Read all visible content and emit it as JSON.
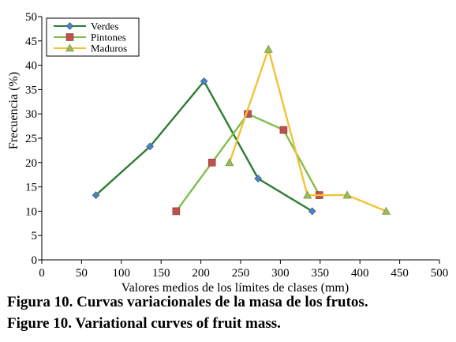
{
  "chart_data": {
    "type": "line",
    "xlabel": "Valores medios de los límites de clases (mm)",
    "ylabel": "Frecuencia (%)",
    "xlim": [
      0,
      500
    ],
    "ylim": [
      0,
      50
    ],
    "x_ticks": [
      0,
      50,
      100,
      150,
      200,
      250,
      300,
      350,
      400,
      450,
      500
    ],
    "y_ticks": [
      0,
      5,
      10,
      15,
      20,
      25,
      30,
      35,
      40,
      45,
      50
    ],
    "grid": false,
    "legend_position": "top-left",
    "series": [
      {
        "name": "Verdes",
        "color": "#2e7d32",
        "marker": "diamond",
        "marker_color": "#4f81bd",
        "x": [
          68,
          136,
          204,
          272,
          340
        ],
        "y": [
          13.3,
          23.3,
          36.7,
          16.7,
          10.0
        ]
      },
      {
        "name": "Pintones",
        "color": "#7fbf4d",
        "marker": "square",
        "marker_color": "#c0504d",
        "x": [
          169,
          214,
          259,
          304,
          349
        ],
        "y": [
          10.0,
          20.0,
          30.0,
          26.7,
          13.3
        ]
      },
      {
        "name": "Maduros",
        "color": "#f2c236",
        "marker": "triangle",
        "marker_color": "#9bbb59",
        "x": [
          236,
          285,
          334,
          384,
          433
        ],
        "y": [
          20.0,
          43.3,
          13.3,
          13.3,
          10.0
        ]
      }
    ]
  },
  "captions": {
    "spanish": "Figura 10. Curvas variacionales de la masa de los frutos.",
    "english": "Figure 10. Variational curves of fruit mass."
  }
}
